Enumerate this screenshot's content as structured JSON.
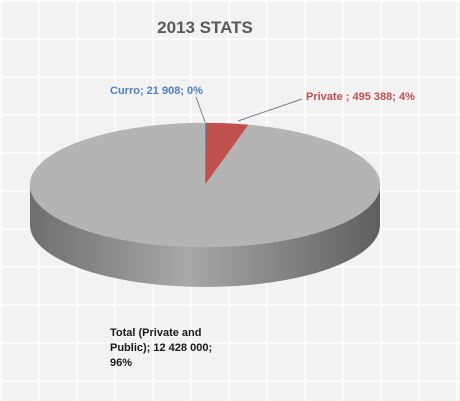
{
  "chart_data": {
    "type": "pie",
    "title": "2013 STATS",
    "values": [
      21908,
      495388,
      12428000
    ],
    "value_labels": [
      "Curro; 21 908; 0%",
      "Private ; 495 388; 4%",
      "Total (Private and Public); 12 428 000; 96%"
    ],
    "colors": [
      "#4f81bd",
      "#c0504d",
      "#b4b4b4"
    ]
  }
}
